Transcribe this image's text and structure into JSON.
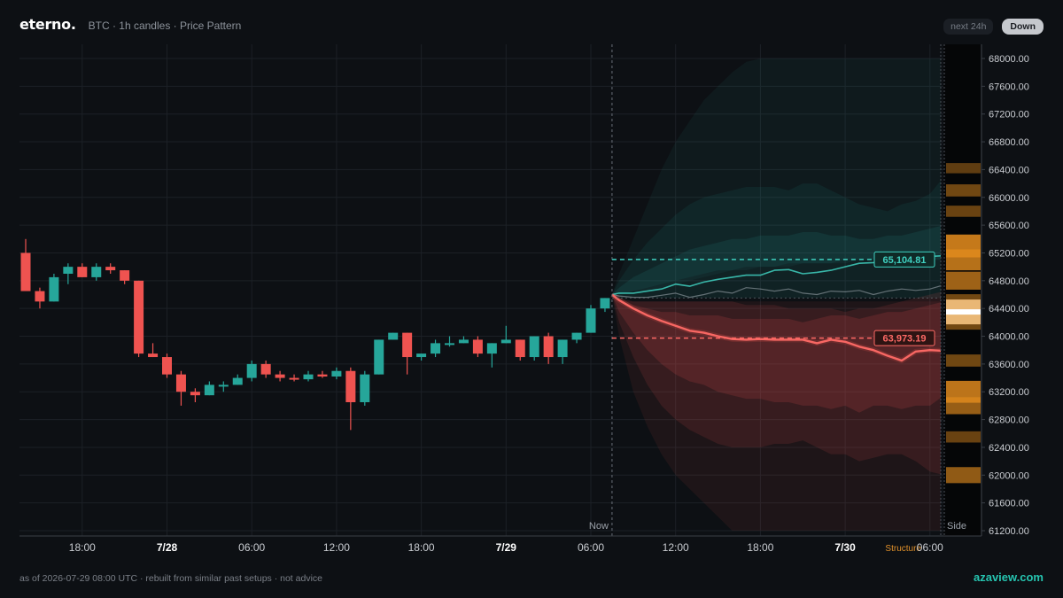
{
  "header": {
    "brand": "eterno.",
    "subtitle": "BTC · 1h candles · Price Pattern"
  },
  "controls": {
    "range_label": "next 24h",
    "direction_label": "Down"
  },
  "footer": {
    "note": "as of 2026-07-29 08:00 UTC · rebuilt from similar past setups · not advice",
    "site": "azaview.com"
  },
  "colors": {
    "up": "#26a69a",
    "down": "#ef5350",
    "bg": "#0d1014",
    "structure": "#e08a1e"
  },
  "chart_data": {
    "type": "candlestick",
    "x_unit": "hours",
    "ylim": [
      61200,
      68000
    ],
    "y_ticks": [
      "68000.00",
      "67600.00",
      "67200.00",
      "66800.00",
      "66400.00",
      "66000.00",
      "65600.00",
      "65200.00",
      "64800.00",
      "64400.00",
      "64000.00",
      "63600.00",
      "63200.00",
      "62800.00",
      "62400.00",
      "62000.00",
      "61600.00",
      "61200.00"
    ],
    "x_ticks": [
      {
        "t": 4,
        "label": "18:00",
        "bold": false
      },
      {
        "t": 10,
        "label": "7/28",
        "bold": true
      },
      {
        "t": 16,
        "label": "06:00",
        "bold": false
      },
      {
        "t": 22,
        "label": "12:00",
        "bold": false
      },
      {
        "t": 28,
        "label": "18:00",
        "bold": false
      },
      {
        "t": 34,
        "label": "7/29",
        "bold": true
      },
      {
        "t": 40,
        "label": "06:00",
        "bold": false
      },
      {
        "t": 46,
        "label": "12:00",
        "bold": false
      },
      {
        "t": 52,
        "label": "18:00",
        "bold": false
      },
      {
        "t": 58,
        "label": "7/30",
        "bold": true
      },
      {
        "t": 64,
        "label": "06:00",
        "bold": false
      }
    ],
    "candles": [
      [
        65200,
        65400,
        64700,
        64650
      ],
      [
        64650,
        64700,
        64400,
        64500
      ],
      [
        64500,
        64900,
        64500,
        64850
      ],
      [
        64900,
        65050,
        64750,
        65000
      ],
      [
        65000,
        65050,
        64850,
        64850
      ],
      [
        64850,
        65050,
        64800,
        65000
      ],
      [
        65000,
        65050,
        64900,
        64950
      ],
      [
        64950,
        64950,
        64750,
        64800
      ],
      [
        64800,
        64800,
        63700,
        63750
      ],
      [
        63750,
        63900,
        63700,
        63700
      ],
      [
        63700,
        63750,
        63400,
        63450
      ],
      [
        63450,
        63500,
        63000,
        63200
      ],
      [
        63200,
        63250,
        63050,
        63150
      ],
      [
        63150,
        63350,
        63150,
        63300
      ],
      [
        63300,
        63350,
        63200,
        63300
      ],
      [
        63300,
        63450,
        63300,
        63400
      ],
      [
        63400,
        63650,
        63350,
        63600
      ],
      [
        63600,
        63650,
        63400,
        63450
      ],
      [
        63450,
        63500,
        63350,
        63400
      ],
      [
        63400,
        63450,
        63350,
        63380
      ],
      [
        63380,
        63500,
        63350,
        63450
      ],
      [
        63450,
        63500,
        63400,
        63420
      ],
      [
        63420,
        63550,
        63380,
        63500
      ],
      [
        63500,
        63550,
        62650,
        63050
      ],
      [
        63050,
        63500,
        63000,
        63450
      ],
      [
        63450,
        63950,
        63450,
        63950
      ],
      [
        63950,
        64050,
        63950,
        64050
      ],
      [
        64050,
        64050,
        63450,
        63700
      ],
      [
        63700,
        63750,
        63650,
        63750
      ],
      [
        63750,
        63950,
        63700,
        63900
      ],
      [
        63900,
        64000,
        63850,
        63900
      ],
      [
        63900,
        64000,
        63900,
        63950
      ],
      [
        63950,
        64000,
        63700,
        63750
      ],
      [
        63750,
        63900,
        63550,
        63900
      ],
      [
        63900,
        64150,
        63900,
        63950
      ],
      [
        63950,
        63950,
        63650,
        63700
      ],
      [
        63700,
        64000,
        63650,
        64000
      ],
      [
        64000,
        64050,
        63600,
        63700
      ],
      [
        63700,
        63950,
        63600,
        63950
      ],
      [
        63950,
        64050,
        63900,
        64050
      ],
      [
        64050,
        64450,
        64050,
        64400
      ],
      [
        64400,
        64550,
        64350,
        64550
      ]
    ],
    "now_t": 41.5,
    "forecast_t": [
      41.5,
      42,
      43,
      44,
      45,
      46,
      47,
      48,
      49,
      50,
      51,
      52,
      53,
      54,
      55,
      56,
      57,
      58,
      59,
      60,
      61,
      62,
      63,
      64,
      65,
      66
    ],
    "bands": [
      {
        "color": "#26a69a",
        "opacity": 0.07,
        "upper": [
          64600,
          64900,
          65400,
          65900,
          66400,
          66800,
          67100,
          67400,
          67600,
          67800,
          67950,
          68000,
          68000,
          68000,
          68000,
          68000,
          68000,
          68000,
          68000,
          68000,
          68000,
          68000,
          68000,
          68000,
          68000,
          68000
        ],
        "lower": [
          64600,
          64600,
          64650,
          64650,
          64700,
          64750,
          64800,
          64850,
          64900,
          64950,
          64950,
          65000,
          65000,
          65000,
          65050,
          65050,
          65050,
          65050,
          65100,
          65100,
          65100,
          65100,
          65100,
          65100,
          65100,
          65100
        ]
      },
      {
        "color": "#26a69a",
        "opacity": 0.09,
        "upper": [
          64600,
          64800,
          65100,
          65350,
          65550,
          65750,
          65900,
          66000,
          66050,
          66100,
          66150,
          66150,
          66150,
          66100,
          66200,
          66200,
          66100,
          66000,
          65900,
          65850,
          65800,
          65900,
          65950,
          66050,
          66300,
          66300
        ],
        "lower": [
          64600,
          64600,
          64650,
          64700,
          64750,
          64800,
          64850,
          64900,
          64950,
          64950,
          65000,
          65000,
          65000,
          65050,
          65050,
          65050,
          65050,
          65100,
          65100,
          65100,
          65100,
          65100,
          65100,
          65100,
          65100,
          65100
        ]
      },
      {
        "color": "#26a69a",
        "opacity": 0.12,
        "upper": [
          64600,
          64700,
          64850,
          64950,
          65050,
          65150,
          65250,
          65300,
          65350,
          65400,
          65400,
          65450,
          65450,
          65450,
          65500,
          65500,
          65450,
          65450,
          65400,
          65400,
          65450,
          65450,
          65500,
          65550,
          65600,
          65600
        ],
        "lower": [
          64600,
          64550,
          64550,
          64550,
          64550,
          64550,
          64550,
          64550,
          64550,
          64550,
          64550,
          64550,
          64550,
          64550,
          64550,
          64550,
          64550,
          64550,
          64550,
          64550,
          64550,
          64550,
          64550,
          64550,
          64550,
          64550
        ]
      },
      {
        "color": "#ef5350",
        "opacity": 0.08,
        "upper": [
          64600,
          64500,
          64500,
          64500,
          64500,
          64500,
          64500,
          64500,
          64500,
          64500,
          64500,
          64500,
          64500,
          64500,
          64500,
          64500,
          64500,
          64500,
          64500,
          64500,
          64500,
          64500,
          64500,
          64500,
          64500,
          64500
        ],
        "lower": [
          64600,
          64000,
          63200,
          62700,
          62300,
          62000,
          61800,
          61600,
          61400,
          61200,
          61200,
          61200,
          61200,
          61200,
          61200,
          61200,
          61200,
          61200,
          61200,
          61200,
          61200,
          61200,
          61200,
          61200,
          61200,
          61200
        ]
      },
      {
        "color": "#ef5350",
        "opacity": 0.12,
        "upper": [
          64600,
          64550,
          64500,
          64500,
          64500,
          64500,
          64500,
          64500,
          64500,
          64500,
          64450,
          64450,
          64450,
          64400,
          64400,
          64400,
          64400,
          64350,
          64400,
          64400,
          64450,
          64500,
          64550,
          64600,
          64650,
          64700
        ],
        "lower": [
          64600,
          64200,
          63700,
          63300,
          63000,
          62800,
          62650,
          62550,
          62450,
          62400,
          62400,
          62400,
          62450,
          62450,
          62500,
          62400,
          62300,
          62300,
          62200,
          62250,
          62300,
          62300,
          62200,
          62050,
          62000,
          62100
        ]
      },
      {
        "color": "#ef5350",
        "opacity": 0.16,
        "upper": [
          64600,
          64550,
          64450,
          64400,
          64350,
          64350,
          64300,
          64300,
          64300,
          64250,
          64250,
          64250,
          64250,
          64250,
          64200,
          64250,
          64300,
          64300,
          64250,
          64300,
          64350,
          64350,
          64400,
          64450,
          64500,
          64550
        ],
        "lower": [
          64600,
          64350,
          64050,
          63800,
          63600,
          63450,
          63350,
          63300,
          63200,
          63150,
          63100,
          63100,
          63050,
          63050,
          63000,
          63000,
          62950,
          63000,
          62900,
          63000,
          63000,
          62950,
          63000,
          63000,
          63150,
          63200
        ]
      }
    ],
    "bull_path": [
      64600,
      64620,
      64620,
      64650,
      64680,
      64750,
      64720,
      64780,
      64820,
      64850,
      64880,
      64880,
      64950,
      64960,
      64900,
      64920,
      64950,
      65000,
      65050,
      65060,
      65080,
      65080,
      65120,
      65150,
      65160,
      65160
    ],
    "bear_path": [
      64600,
      64520,
      64400,
      64300,
      64220,
      64150,
      64080,
      64050,
      64000,
      63960,
      63950,
      63960,
      63950,
      63950,
      63950,
      63900,
      63950,
      63920,
      63850,
      63800,
      63720,
      63650,
      63780,
      63800,
      63790,
      63780
    ],
    "mid_path": [
      64600,
      64580,
      64560,
      64560,
      64590,
      64620,
      64560,
      64600,
      64650,
      64620,
      64700,
      64680,
      64650,
      64680,
      64620,
      64600,
      64650,
      64640,
      64660,
      64600,
      64650,
      64680,
      64660,
      64680,
      64740,
      64720
    ],
    "targets": [
      {
        "label": "65,104.81",
        "value": 65104.81,
        "kind": "up"
      },
      {
        "label": "63,973.19",
        "value": 63973.19,
        "kind": "down"
      }
    ],
    "now_label": "Now",
    "side_label": "Side",
    "structure_label": "Structure",
    "structure_levels": [
      {
        "price": 66420,
        "intensity": 0.25
      },
      {
        "price": 66100,
        "intensity": 0.35
      },
      {
        "price": 65800,
        "intensity": 0.3
      },
      {
        "price": 65300,
        "intensity": 0.9
      },
      {
        "price": 65100,
        "intensity": 0.8
      },
      {
        "price": 64800,
        "intensity": 0.65
      },
      {
        "price": 64350,
        "intensity": 1.0
      },
      {
        "price": 63650,
        "intensity": 0.35
      },
      {
        "price": 63200,
        "intensity": 0.85
      },
      {
        "price": 63000,
        "intensity": 0.6
      },
      {
        "price": 62550,
        "intensity": 0.3
      },
      {
        "price": 62000,
        "intensity": 0.55
      }
    ]
  }
}
